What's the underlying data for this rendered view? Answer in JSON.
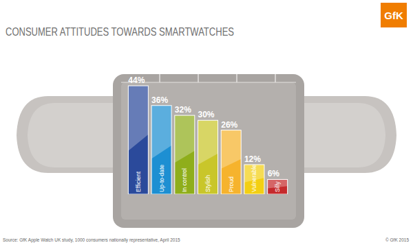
{
  "chart_data": {
    "type": "bar",
    "title": "CONSUMER ATTITUDES TOWARDS SMARTWATCHES",
    "categories": [
      "Efficient",
      "Up-to-date",
      "In control",
      "Stylish",
      "Proud",
      "Vulnerable",
      "Silly"
    ],
    "values": [
      44,
      36,
      32,
      30,
      26,
      12,
      6
    ],
    "value_labels": [
      "44%",
      "36%",
      "32%",
      "30%",
      "26%",
      "12%",
      "6%"
    ],
    "colors": [
      "#2b4a9b",
      "#1d8fd2",
      "#8fae1b",
      "#c9c62a",
      "#f6b32d",
      "#f3cf12",
      "#c52a2c"
    ],
    "data_labels": true,
    "tick_labels": false,
    "grid": false,
    "source": "Source: GfK Apple Watch UK study, 1000 consumers nationally representative, April 2015",
    "copyright": "© GfK 2015",
    "logo": "GfK"
  }
}
